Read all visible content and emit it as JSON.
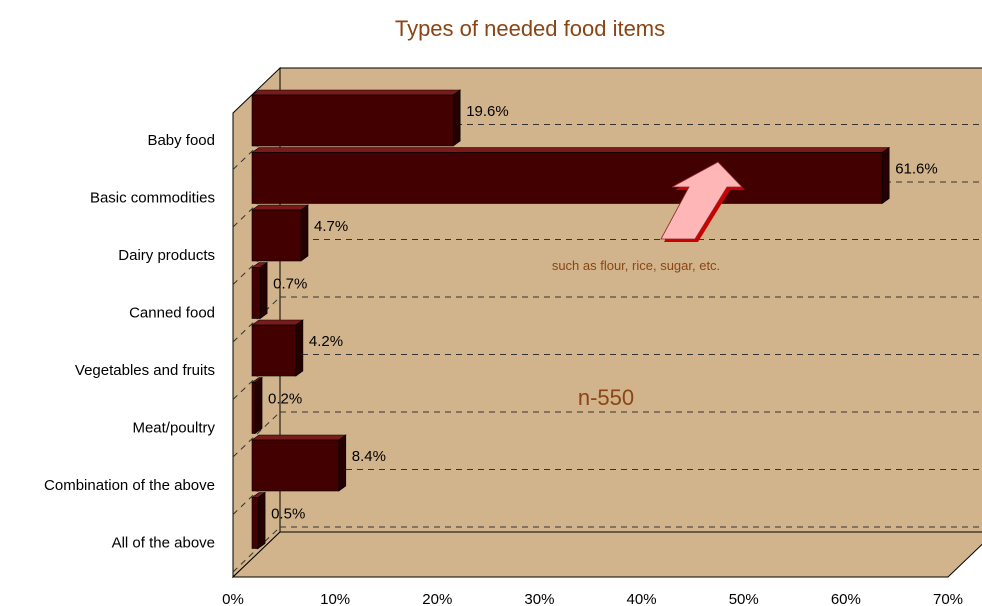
{
  "chart_data": {
    "type": "bar",
    "orientation": "horizontal",
    "style": "3d",
    "title": "Types of needed food items",
    "categories": [
      "Baby food",
      "Basic commodities",
      "Dairy products",
      "Canned food",
      "Vegetables and fruits",
      "Meat/poultry",
      "Combination of the above",
      "All of the above"
    ],
    "values": [
      19.6,
      61.6,
      4.7,
      0.7,
      4.2,
      0.2,
      8.4,
      0.5
    ],
    "value_labels": [
      "19.6%",
      "61.6%",
      "4.7%",
      "0.7%",
      "4.2%",
      "0.2%",
      "8.4%",
      "0.5%"
    ],
    "xlim": [
      0,
      70
    ],
    "x_ticks": [
      "0%",
      "10%",
      "20%",
      "30%",
      "40%",
      "50%",
      "60%",
      "70%"
    ],
    "grid": "dashed horizontal",
    "annotations": {
      "sample_size": "n-550",
      "arrow_note": "such as flour, rice, sugar, etc."
    },
    "colors": {
      "bar_front": "#420000",
      "bar_top": "#7a1a1a",
      "bar_side": "#250000",
      "plot_background": "#D2B48C",
      "annotation_text": "#8B4513",
      "arrow_fill": "#FFB6B6",
      "arrow_shadow": "#CC0000"
    }
  }
}
